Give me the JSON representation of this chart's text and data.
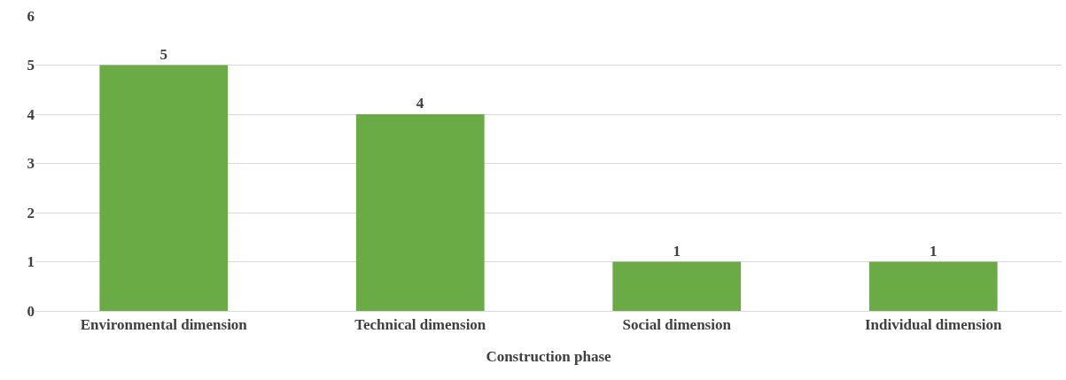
{
  "chart_data": {
    "type": "bar",
    "categories": [
      "Environmental dimension",
      "Technical dimension",
      "Social dimension",
      "Individual dimension"
    ],
    "values": [
      5,
      4,
      1,
      1
    ],
    "color": "#6aab45",
    "xlabel": "Construction phase",
    "ylim": [
      0,
      6
    ],
    "yticks": [
      0,
      1,
      2,
      3,
      4,
      5,
      6
    ],
    "grid": "y",
    "data_labels": true
  }
}
